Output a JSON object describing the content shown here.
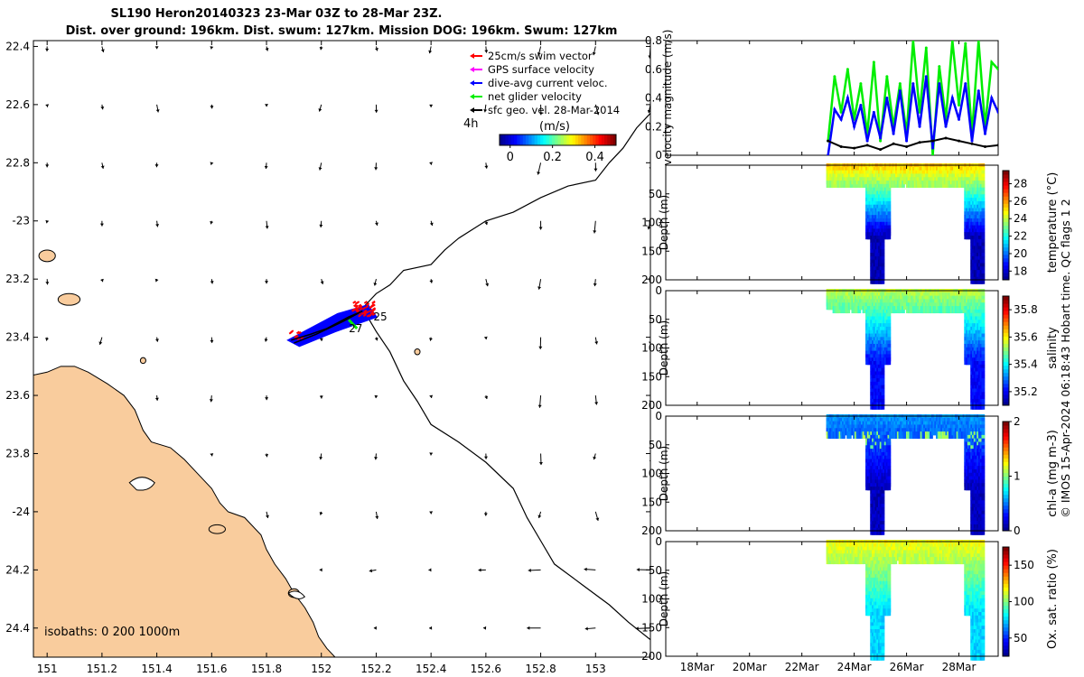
{
  "colors": {
    "land": "#f9cc9d",
    "swim": "#ff0000",
    "gps": "#ff00ff",
    "dive": "#0000ff",
    "net": "#00ee00",
    "geo": "#000000",
    "colormap": [
      "#00008f",
      "#0000ff",
      "#0080ff",
      "#00ffff",
      "#80ff80",
      "#ffff00",
      "#ff8000",
      "#ff0000",
      "#800000"
    ]
  },
  "chart_data": [
    {
      "type": "map",
      "title_line1": "SL190 Heron20140323 23-Mar 03Z to 28-Mar 23Z.",
      "title_line2": "Dist. over ground: 196km. Dist. swum: 127km. Mission DOG: 196km. Swum: 127km",
      "xlim": [
        150.95,
        153.2
      ],
      "ylim": [
        -24.5,
        -22.38
      ],
      "xticks": [
        151,
        151.2,
        151.4,
        151.6,
        151.8,
        152,
        152.2,
        152.4,
        152.6,
        152.8,
        153
      ],
      "xtick_labels": [
        "151",
        "151.2",
        "151.4",
        "151.6",
        "151.8",
        "152",
        "152.2",
        "152.4",
        "152.6",
        "152.8",
        "153"
      ],
      "yticks": [
        -22.4,
        -22.6,
        -22.8,
        -23.0,
        -23.2,
        -23.4,
        -23.6,
        -23.8,
        -24.0,
        -24.2,
        -24.4
      ],
      "ytick_labels": [
        "22.4",
        "22.6",
        "22.8",
        "-23",
        "23.2",
        "23.4",
        "23.6",
        "23.8",
        "-24",
        "24.2",
        "24.4"
      ],
      "legend": [
        {
          "label": "25cm/s swim vector",
          "color_key": "swim"
        },
        {
          "label": "GPS surface velocity",
          "color_key": "gps"
        },
        {
          "label": "dive-avg current veloc.",
          "color_key": "dive"
        },
        {
          "label": "net glider velocity",
          "color_key": "net"
        },
        {
          "label": "sfc geo. vel. 28-Mar-2014",
          "color_key": "geo"
        }
      ],
      "time_label": "4h",
      "colorbar_title": "(m/s)",
      "colorbar_ticks": [
        "0",
        "0.2",
        "0.4"
      ],
      "colorbar_range": [
        -0.05,
        0.5
      ],
      "isobath_label": "isobaths: 0   200  1000m",
      "track_labels": [
        {
          "text": "25",
          "lon": 152.19,
          "lat": -23.33
        },
        {
          "text": "27",
          "lon": 152.1,
          "lat": -23.37
        }
      ],
      "isobath_line": [
        [
          153.2,
          -22.63
        ],
        [
          153.15,
          -22.68
        ],
        [
          153.1,
          -22.75
        ],
        [
          153.05,
          -22.8
        ],
        [
          153.0,
          -22.86
        ],
        [
          152.9,
          -22.88
        ],
        [
          152.8,
          -22.92
        ],
        [
          152.7,
          -22.97
        ],
        [
          152.6,
          -23.0
        ],
        [
          152.5,
          -23.06
        ],
        [
          152.45,
          -23.1
        ],
        [
          152.4,
          -23.15
        ],
        [
          152.3,
          -23.17
        ],
        [
          152.25,
          -23.22
        ],
        [
          152.2,
          -23.25
        ],
        [
          152.15,
          -23.3
        ],
        [
          152.2,
          -23.38
        ],
        [
          152.25,
          -23.45
        ],
        [
          152.3,
          -23.55
        ],
        [
          152.35,
          -23.62
        ],
        [
          152.4,
          -23.7
        ],
        [
          152.5,
          -23.76
        ],
        [
          152.6,
          -23.83
        ],
        [
          152.7,
          -23.92
        ],
        [
          152.75,
          -24.02
        ],
        [
          152.8,
          -24.1
        ],
        [
          152.85,
          -24.18
        ],
        [
          152.95,
          -24.25
        ],
        [
          153.05,
          -24.32
        ],
        [
          153.12,
          -24.38
        ],
        [
          153.2,
          -24.44
        ]
      ],
      "coastline": [
        [
          150.95,
          -23.53
        ],
        [
          151.0,
          -23.52
        ],
        [
          151.05,
          -23.5
        ],
        [
          151.1,
          -23.5
        ],
        [
          151.15,
          -23.52
        ],
        [
          151.22,
          -23.56
        ],
        [
          151.28,
          -23.6
        ],
        [
          151.32,
          -23.65
        ],
        [
          151.35,
          -23.72
        ],
        [
          151.38,
          -23.76
        ],
        [
          151.45,
          -23.78
        ],
        [
          151.5,
          -23.82
        ],
        [
          151.55,
          -23.87
        ],
        [
          151.6,
          -23.92
        ],
        [
          151.63,
          -23.97
        ],
        [
          151.66,
          -24.0
        ],
        [
          151.72,
          -24.02
        ],
        [
          151.78,
          -24.08
        ],
        [
          151.8,
          -24.13
        ],
        [
          151.83,
          -24.18
        ],
        [
          151.87,
          -24.23
        ],
        [
          151.9,
          -24.28
        ],
        [
          151.94,
          -24.33
        ],
        [
          151.97,
          -24.38
        ],
        [
          151.99,
          -24.43
        ],
        [
          152.02,
          -24.47
        ],
        [
          152.05,
          -24.5
        ]
      ]
    },
    {
      "type": "line",
      "ylabel": "velocity magnitude (m/s)",
      "ylim": [
        0,
        0.8
      ],
      "yticks": [
        0,
        0.2,
        0.4,
        0.6,
        0.8
      ],
      "ytick_labels": [
        "0",
        "0.2",
        "0.4",
        "0.6",
        "0.8"
      ],
      "xlim": [
        16.8,
        29.5
      ],
      "series": [
        {
          "name": "net glider velocity",
          "color_key": "net",
          "x": [
            23.0,
            23.25,
            23.5,
            23.75,
            24.0,
            24.25,
            24.5,
            24.75,
            25.0,
            25.25,
            25.5,
            25.75,
            26.0,
            26.25,
            26.5,
            26.75,
            27.0,
            27.25,
            27.5,
            27.75,
            28.0,
            28.25,
            28.5,
            28.75,
            29.0,
            29.25,
            29.5
          ],
          "values": [
            0.1,
            0.55,
            0.3,
            0.6,
            0.25,
            0.5,
            0.15,
            0.65,
            0.1,
            0.55,
            0.2,
            0.5,
            0.15,
            0.8,
            0.3,
            0.75,
            0.0,
            0.62,
            0.25,
            0.8,
            0.35,
            0.78,
            0.15,
            0.8,
            0.2,
            0.65,
            0.6
          ]
        },
        {
          "name": "dive-avg current veloc.",
          "color_key": "dive",
          "x": [
            23.0,
            23.25,
            23.5,
            23.75,
            24.0,
            24.25,
            24.5,
            24.75,
            25.0,
            25.25,
            25.5,
            25.75,
            26.0,
            26.25,
            26.5,
            26.75,
            27.0,
            27.25,
            27.5,
            27.75,
            28.0,
            28.25,
            28.5,
            28.75,
            29.0,
            29.25,
            29.5
          ],
          "values": [
            0.0,
            0.32,
            0.25,
            0.4,
            0.2,
            0.35,
            0.1,
            0.3,
            0.12,
            0.4,
            0.15,
            0.45,
            0.1,
            0.5,
            0.2,
            0.55,
            0.05,
            0.5,
            0.2,
            0.4,
            0.25,
            0.5,
            0.1,
            0.45,
            0.15,
            0.4,
            0.3
          ]
        },
        {
          "name": "sfc geo. vel.",
          "color_key": "geo",
          "x": [
            23.0,
            23.5,
            24.0,
            24.5,
            25.0,
            25.5,
            26.0,
            26.5,
            27.0,
            27.5,
            28.0,
            28.5,
            29.0,
            29.5
          ],
          "values": [
            0.1,
            0.06,
            0.05,
            0.07,
            0.04,
            0.08,
            0.06,
            0.09,
            0.1,
            0.12,
            0.1,
            0.08,
            0.06,
            0.07
          ]
        }
      ]
    },
    {
      "type": "scatter-section",
      "ylabel": "Depth (m)",
      "cbar_label": "temperature (°C)",
      "crange": [
        17,
        29.5
      ],
      "cticks": [
        18,
        20,
        22,
        24,
        26,
        28
      ],
      "ytick_labels": [
        "50",
        "100",
        "150",
        "200"
      ],
      "surface_value": 25.5,
      "deep_value": 17.5
    },
    {
      "type": "scatter-section",
      "ylabel": "Depth (m)",
      "cbar_label": "salinity",
      "crange": [
        35.1,
        35.9
      ],
      "cticks": [
        35.2,
        35.4,
        35.6,
        35.8
      ],
      "ytick_labels": [
        "0",
        "50",
        "100",
        "150",
        "200"
      ],
      "surface_value": 35.55,
      "deep_value": 35.2
    },
    {
      "type": "scatter-section",
      "ylabel": "Depth (m)",
      "cbar_label": "chl-a (mg m-3)",
      "crange": [
        0,
        2
      ],
      "cticks": [
        0,
        1,
        2
      ],
      "ytick_labels": [
        "0",
        "50",
        "100",
        "150",
        "200"
      ],
      "surface_value": 0.55,
      "deep_value": 0.1
    },
    {
      "type": "scatter-section",
      "ylabel": "Depth (m)",
      "cbar_label": "Ox. sat. ratio (%)",
      "crange": [
        25,
        175
      ],
      "cticks": [
        50,
        100,
        150
      ],
      "ytick_labels": [
        "0",
        "50",
        "100",
        "150",
        "200"
      ],
      "surface_value": 118,
      "deep_value": 75
    }
  ],
  "time_axis": {
    "ticks": [
      18,
      20,
      22,
      24,
      26,
      28
    ],
    "labels": [
      "18Mar",
      "20Mar",
      "22Mar",
      "24Mar",
      "26Mar",
      "28Mar"
    ]
  },
  "footer": "© IMOS 15-Apr-2024 06:18:43 Hobart time. QC flags 1  2"
}
